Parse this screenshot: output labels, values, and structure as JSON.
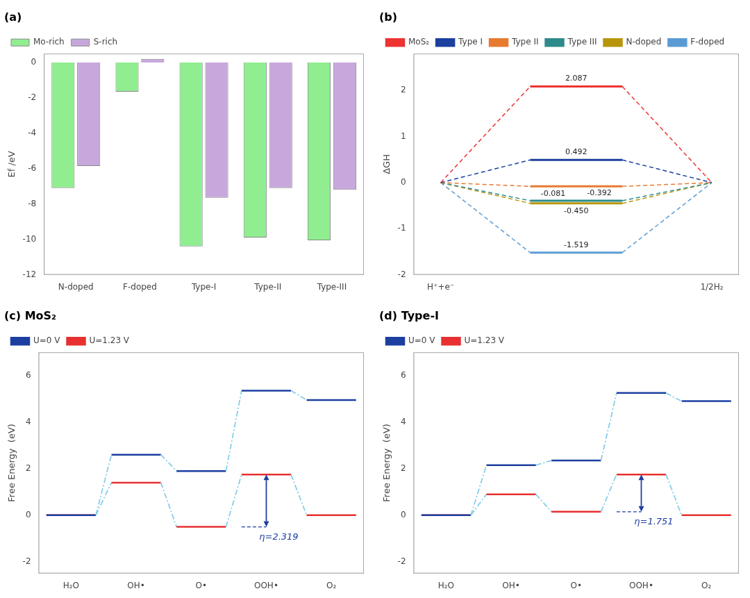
{
  "chart_data": [
    {
      "type": "bar",
      "title": "(a)",
      "categories": [
        "N-doped",
        "F-doped",
        "Type-I",
        "Type-II",
        "Type-III"
      ],
      "series": [
        {
          "name": "Mo-rich",
          "color": "#90EE90",
          "values": [
            -7.1,
            -1.65,
            -10.4,
            -9.9,
            -10.05
          ]
        },
        {
          "name": "S-rich",
          "color": "#C8A8DC",
          "values": [
            -5.85,
            0.2,
            -7.65,
            -7.1,
            -7.2
          ]
        }
      ],
      "ylabel": "Ef /eV",
      "ylim": [
        -12,
        0.5
      ],
      "yticks": [
        -12,
        -10,
        -8,
        -6,
        -4,
        -2,
        0
      ],
      "grid": false,
      "legend": "top"
    },
    {
      "type": "line",
      "title": "(b)",
      "categories": [
        "H⁺+e⁻",
        null,
        "1/2H₂"
      ],
      "series": [
        {
          "name": "MoS₂",
          "color": "#EE3333",
          "values": [
            0,
            2.087,
            0
          ],
          "value_labels": [
            null,
            "2.087",
            null
          ]
        },
        {
          "name": "Type I",
          "color": "#1C3FA0",
          "values": [
            0,
            0.492,
            0
          ],
          "value_labels": [
            null,
            "0.492",
            null
          ]
        },
        {
          "name": "Type II",
          "color": "#E87A30",
          "values": [
            0,
            -0.081,
            0
          ],
          "value_labels": [
            null,
            "-0.081",
            null
          ]
        },
        {
          "name": "Type III",
          "color": "#2E8B8B",
          "values": [
            0,
            -0.392,
            0
          ],
          "value_labels": [
            null,
            "-0.392",
            null
          ]
        },
        {
          "name": "N-doped",
          "color": "#B8960C",
          "values": [
            0,
            -0.45,
            0
          ],
          "value_labels": [
            null,
            "-0.450",
            null
          ]
        },
        {
          "name": "F-doped",
          "color": "#5B9BD5",
          "values": [
            0,
            -1.519,
            0
          ],
          "value_labels": [
            null,
            "-1.519",
            null
          ]
        }
      ],
      "ylabel": "ΔGH",
      "ylim": [
        -2,
        2.8
      ],
      "yticks": [
        -2,
        -1,
        0,
        1,
        2
      ],
      "grid": false,
      "legend": "top",
      "data_labels": true
    },
    {
      "type": "levels",
      "title": "(c) MoS₂",
      "categories": [
        "H₂O",
        "OH•",
        "O•",
        "OOH•",
        "O₂"
      ],
      "series": [
        {
          "name": "U=0 V",
          "color": "#1C3FA0",
          "values": [
            0.0,
            2.6,
            1.9,
            5.35,
            4.95
          ]
        },
        {
          "name": "U=1.23 V",
          "color": "#E83030",
          "values": [
            0.0,
            1.4,
            -0.5,
            1.75,
            0.0
          ]
        }
      ],
      "annotations": [
        {
          "text": "η=2.319",
          "x": "OOH•",
          "y": [
            1.75,
            -0.5
          ],
          "color": "#1C3FA0"
        }
      ],
      "ylabel": "Free Energy  (eV)",
      "ylim": [
        -2.5,
        7.0
      ],
      "yticks": [
        -2,
        0,
        2,
        4,
        6
      ],
      "grid": false,
      "legend": "top"
    },
    {
      "type": "levels",
      "title": "(d) Type-I",
      "categories": [
        "H₂O",
        "OH•",
        "O•",
        "OOH•",
        "O₂"
      ],
      "series": [
        {
          "name": "U=0 V",
          "color": "#1C3FA0",
          "values": [
            0.0,
            2.15,
            2.35,
            5.25,
            4.9
          ]
        },
        {
          "name": "U=1.23 V",
          "color": "#E83030",
          "values": [
            0.0,
            0.9,
            0.15,
            1.75,
            0.0
          ]
        }
      ],
      "annotations": [
        {
          "text": "η=1.751",
          "x": "OOH•",
          "y": [
            1.75,
            0.15
          ],
          "color": "#1C3FA0"
        }
      ],
      "ylabel": "Free Energy  (eV)",
      "ylim": [
        -2.5,
        7.0
      ],
      "yticks": [
        -2,
        0,
        2,
        4,
        6
      ],
      "grid": false,
      "legend": "top"
    }
  ]
}
